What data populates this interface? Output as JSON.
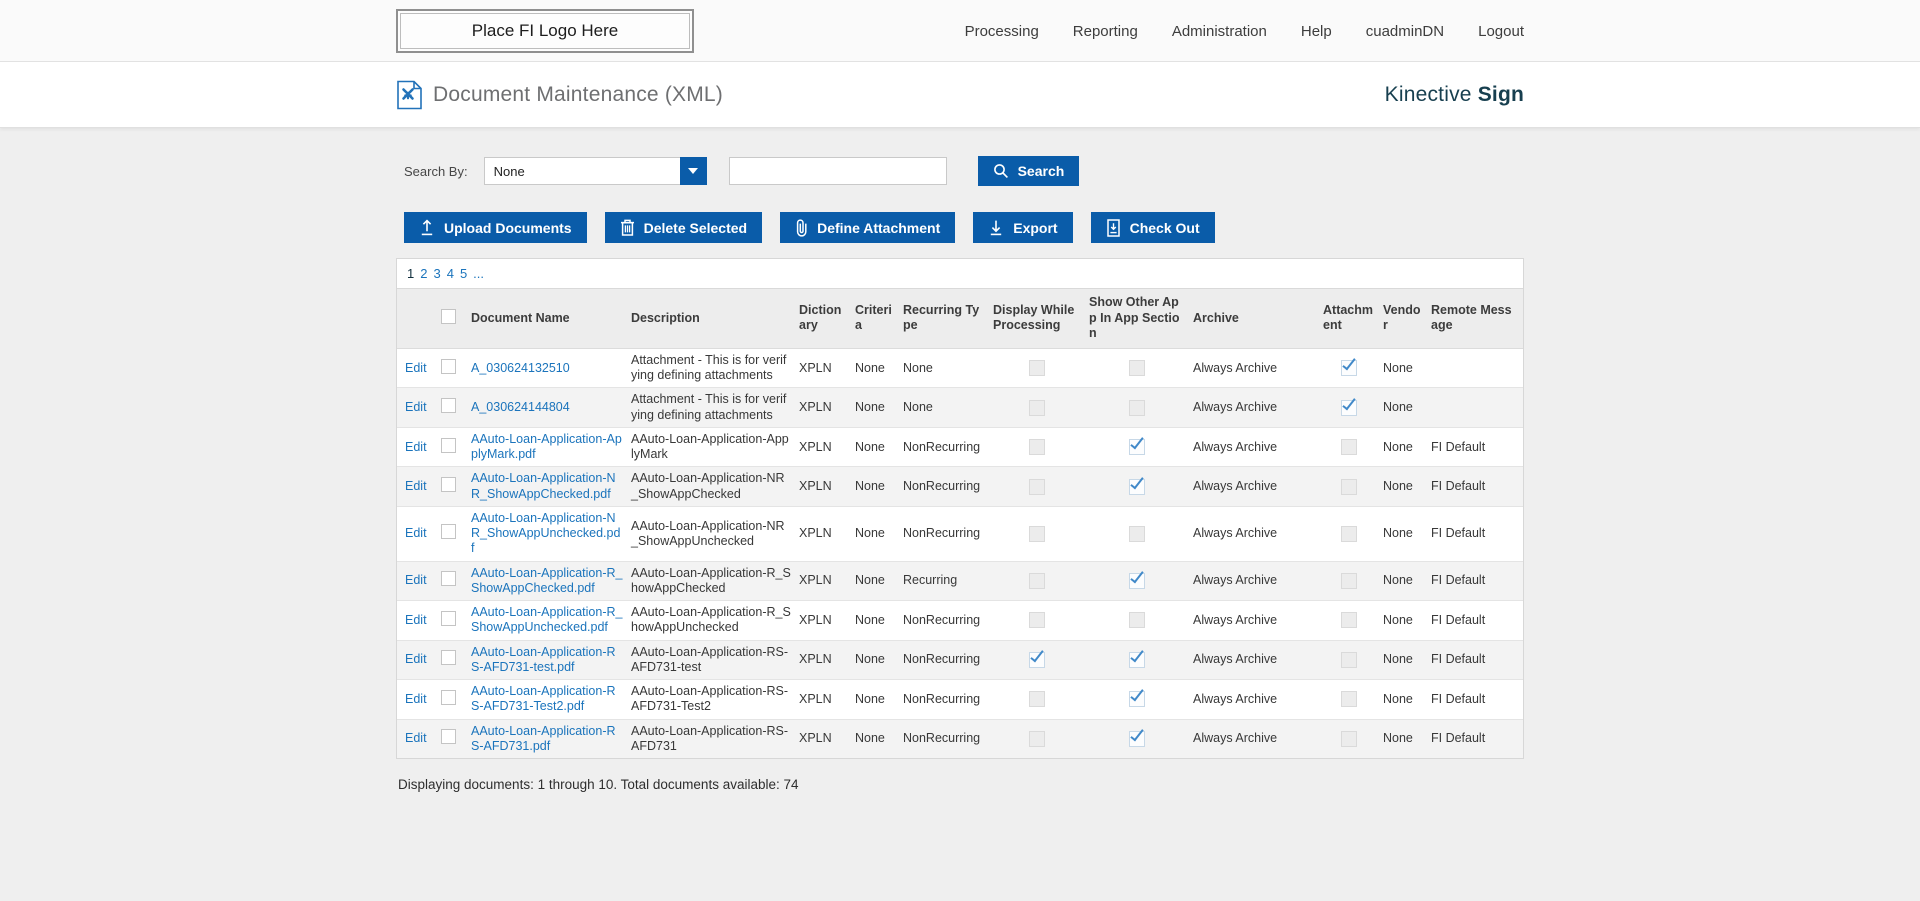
{
  "topbar": {
    "logo_text": "Place FI Logo Here",
    "nav": [
      "Processing",
      "Reporting",
      "Administration",
      "Help",
      "cuadminDN",
      "Logout"
    ]
  },
  "header": {
    "title": "Document Maintenance (XML)",
    "brand_regular": "Kinective",
    "brand_bold": "Sign"
  },
  "search": {
    "label": "Search By:",
    "selected_option": "None",
    "input_value": "",
    "button_label": "Search"
  },
  "actions": [
    {
      "id": "upload-documents",
      "label": "Upload Documents",
      "icon": "upload-icon"
    },
    {
      "id": "delete-selected",
      "label": "Delete Selected",
      "icon": "trash-icon"
    },
    {
      "id": "define-attachment",
      "label": "Define Attachment",
      "icon": "paperclip-icon"
    },
    {
      "id": "export",
      "label": "Export",
      "icon": "download-icon"
    },
    {
      "id": "check-out",
      "label": "Check Out",
      "icon": "checkout-icon"
    }
  ],
  "pagination": {
    "current": "1",
    "items": [
      "1",
      "2",
      "3",
      "4",
      "5",
      "..."
    ]
  },
  "table": {
    "edit_label": "Edit",
    "columns": [
      {
        "key": "edit",
        "label": ""
      },
      {
        "key": "select",
        "label": ""
      },
      {
        "key": "name",
        "label": "Document Name"
      },
      {
        "key": "description",
        "label": "Description"
      },
      {
        "key": "dictionary",
        "label": "Dictionary"
      },
      {
        "key": "criteria",
        "label": "Criteria"
      },
      {
        "key": "recurring_type",
        "label": "Recurring Type"
      },
      {
        "key": "display_while_processing",
        "label": "Display While Processing"
      },
      {
        "key": "show_other_app",
        "label": "Show Other App In App Section"
      },
      {
        "key": "archive",
        "label": "Archive"
      },
      {
        "key": "attachment",
        "label": "Attachment"
      },
      {
        "key": "vendor",
        "label": "Vendor"
      },
      {
        "key": "remote_message",
        "label": "Remote Message"
      }
    ],
    "rows": [
      {
        "name": "A_030624132510",
        "description": "Attachment - This is for verifying defining attachments",
        "dictionary": "XPLN",
        "criteria": "None",
        "recurring_type": "None",
        "display_while_processing": false,
        "show_other_app": false,
        "archive": "Always Archive",
        "attachment": true,
        "vendor": "None",
        "remote_message": ""
      },
      {
        "name": "A_030624144804",
        "description": "Attachment - This is for verifying defining attachments",
        "dictionary": "XPLN",
        "criteria": "None",
        "recurring_type": "None",
        "display_while_processing": false,
        "show_other_app": false,
        "archive": "Always Archive",
        "attachment": true,
        "vendor": "None",
        "remote_message": ""
      },
      {
        "name": "AAuto-Loan-Application-ApplyMark.pdf",
        "description": "AAuto-Loan-Application-ApplyMark",
        "dictionary": "XPLN",
        "criteria": "None",
        "recurring_type": "NonRecurring",
        "display_while_processing": false,
        "show_other_app": true,
        "archive": "Always Archive",
        "attachment": false,
        "vendor": "None",
        "remote_message": "FI Default"
      },
      {
        "name": "AAuto-Loan-Application-NR_ShowAppChecked.pdf",
        "description": "AAuto-Loan-Application-NR_ShowAppChecked",
        "dictionary": "XPLN",
        "criteria": "None",
        "recurring_type": "NonRecurring",
        "display_while_processing": false,
        "show_other_app": true,
        "archive": "Always Archive",
        "attachment": false,
        "vendor": "None",
        "remote_message": "FI Default"
      },
      {
        "name": "AAuto-Loan-Application-NR_ShowAppUnchecked.pdf",
        "description": "AAuto-Loan-Application-NR_ShowAppUnchecked",
        "dictionary": "XPLN",
        "criteria": "None",
        "recurring_type": "NonRecurring",
        "display_while_processing": false,
        "show_other_app": false,
        "archive": "Always Archive",
        "attachment": false,
        "vendor": "None",
        "remote_message": "FI Default"
      },
      {
        "name": "AAuto-Loan-Application-R_ShowAppChecked.pdf",
        "description": "AAuto-Loan-Application-R_ShowAppChecked",
        "dictionary": "XPLN",
        "criteria": "None",
        "recurring_type": "Recurring",
        "display_while_processing": false,
        "show_other_app": true,
        "archive": "Always Archive",
        "attachment": false,
        "vendor": "None",
        "remote_message": "FI Default"
      },
      {
        "name": "AAuto-Loan-Application-R_ShowAppUnchecked.pdf",
        "description": "AAuto-Loan-Application-R_ShowAppUnchecked",
        "dictionary": "XPLN",
        "criteria": "None",
        "recurring_type": "NonRecurring",
        "display_while_processing": false,
        "show_other_app": false,
        "archive": "Always Archive",
        "attachment": false,
        "vendor": "None",
        "remote_message": "FI Default"
      },
      {
        "name": "AAuto-Loan-Application-RS-AFD731-test.pdf",
        "description": "AAuto-Loan-Application-RS-AFD731-test",
        "dictionary": "XPLN",
        "criteria": "None",
        "recurring_type": "NonRecurring",
        "display_while_processing": true,
        "show_other_app": true,
        "archive": "Always Archive",
        "attachment": false,
        "vendor": "None",
        "remote_message": "FI Default"
      },
      {
        "name": "AAuto-Loan-Application-RS-AFD731-Test2.pdf",
        "description": "AAuto-Loan-Application-RS-AFD731-Test2",
        "dictionary": "XPLN",
        "criteria": "None",
        "recurring_type": "NonRecurring",
        "display_while_processing": false,
        "show_other_app": true,
        "archive": "Always Archive",
        "attachment": false,
        "vendor": "None",
        "remote_message": "FI Default"
      },
      {
        "name": "AAuto-Loan-Application-RS-AFD731.pdf",
        "description": "AAuto-Loan-Application-RS-AFD731",
        "dictionary": "XPLN",
        "criteria": "None",
        "recurring_type": "NonRecurring",
        "display_while_processing": false,
        "show_other_app": true,
        "archive": "Always Archive",
        "attachment": false,
        "vendor": "None",
        "remote_message": "FI Default"
      }
    ]
  },
  "footer": {
    "summary": "Displaying documents: 1 through 10. Total documents available: 74"
  },
  "colors": {
    "primary_blue": "#0a5ca9",
    "link_blue": "#1b74bc",
    "check_blue": "#4189c9",
    "brand_teal": "#173f4f",
    "page_background": "#efefef"
  }
}
